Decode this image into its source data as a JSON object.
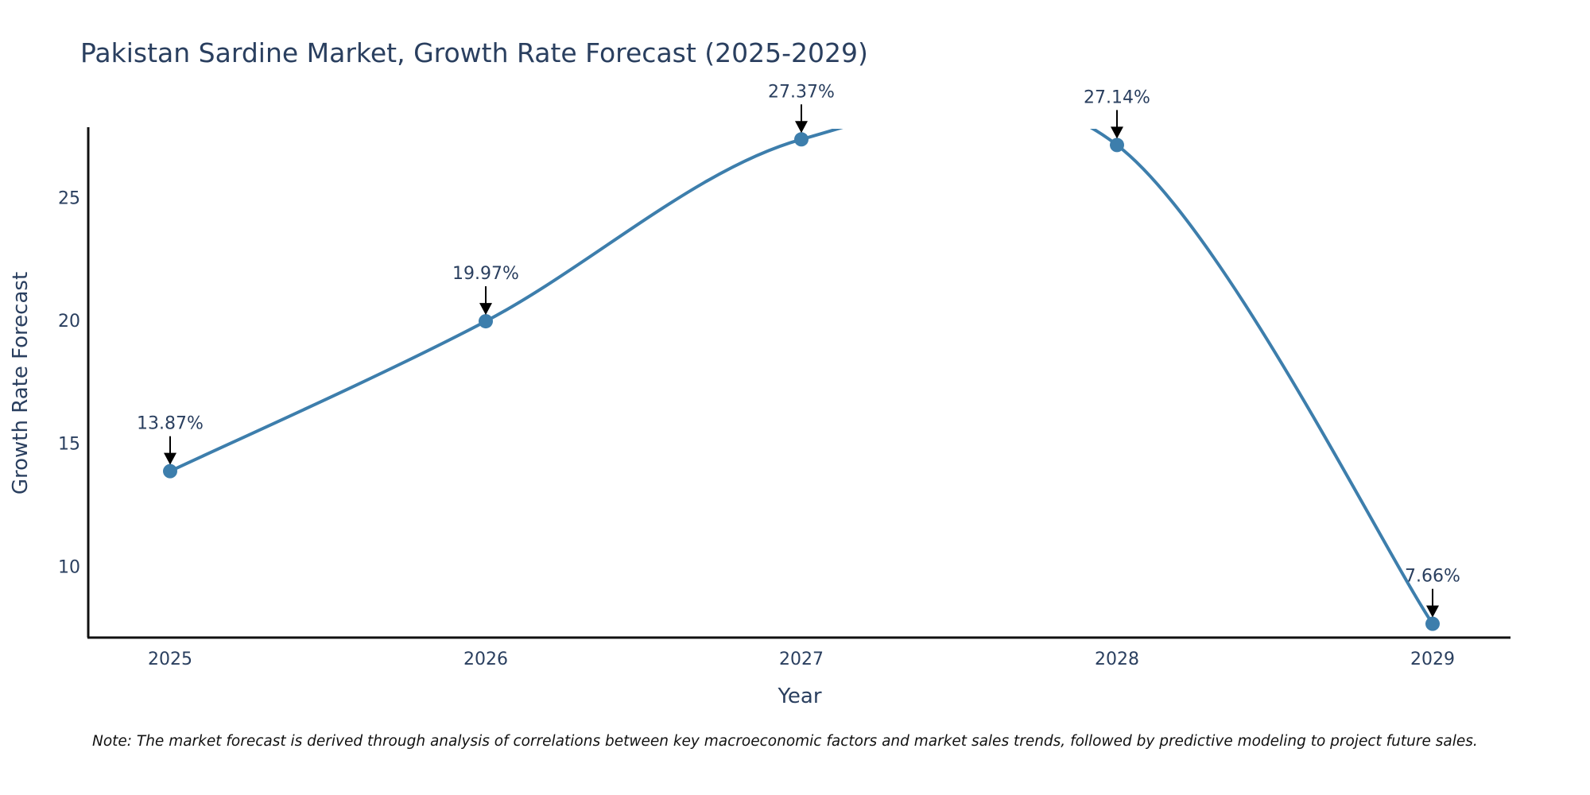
{
  "chart_data": {
    "type": "line",
    "title": "Pakistan Sardine Market, Growth Rate Forecast (2025-2029)",
    "xlabel": "Year",
    "ylabel": "Growth Rate Forecast",
    "categories": [
      "2025",
      "2026",
      "2027",
      "2028",
      "2029"
    ],
    "values": [
      13.87,
      19.97,
      27.37,
      27.14,
      7.66
    ],
    "data_labels": [
      "13.87%",
      "19.97%",
      "27.37%",
      "27.14%",
      "7.66%"
    ],
    "y_ticks": [
      10,
      15,
      20,
      25
    ],
    "y_tick_labels": [
      "10",
      "15",
      "20",
      "25"
    ],
    "ylim": [
      7.1,
      27.8
    ],
    "grid": false,
    "line_shape": "spline",
    "line_color": "#3d7eac",
    "marker_color": "#3d7eac",
    "note": "Note: The market forecast is derived through analysis of correlations between key macroeconomic factors and market sales trends, followed by predictive modeling to project future sales."
  }
}
